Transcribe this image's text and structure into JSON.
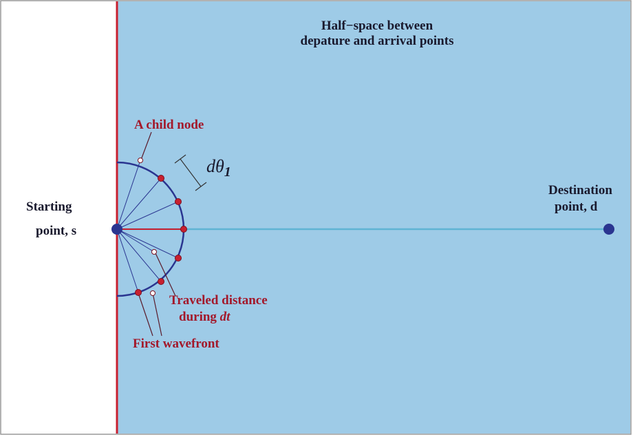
{
  "title_lines": [
    "Half−space between",
    "depature and arrival points"
  ],
  "child_node": "A child node",
  "angle_label": {
    "text": "dθ",
    "subscript": "1"
  },
  "start_lines": [
    "Starting",
    "point, s"
  ],
  "destination_lines": [
    "Destination",
    "point, d"
  ],
  "traveled": {
    "line1": "Traveled distance",
    "line2": "during",
    "line2_italic": "dt"
  },
  "wavefront": "First wavefront"
}
